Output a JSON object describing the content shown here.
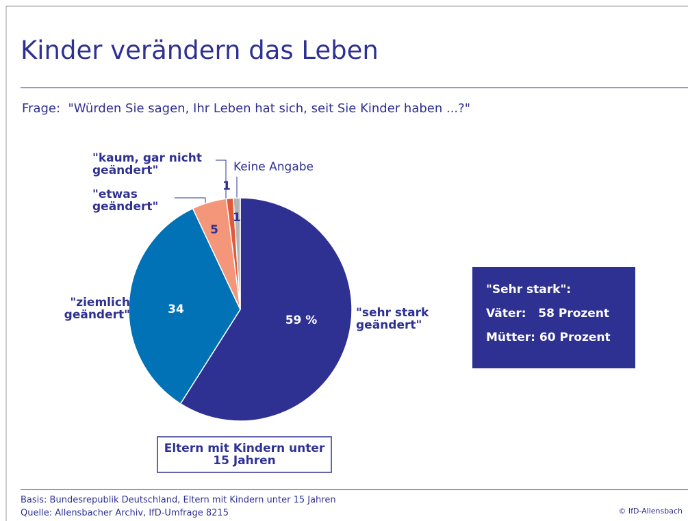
{
  "chart_data": {
    "type": "pie",
    "title": "Kinder verändern das Leben",
    "subtitle": "Frage:  \"Würden Sie sagen, Ihr Leben hat sich, seit Sie Kinder haben ...?\"",
    "categories": [
      "\"sehr stark geändert\"",
      "\"ziemlich geändert\"",
      "\"etwas geändert\"",
      "\"kaum, gar nicht geändert\"",
      "Keine Angabe"
    ],
    "values": [
      59,
      34,
      5,
      1,
      1
    ],
    "value_labels": [
      "59 %",
      "34",
      "5",
      "1",
      "1"
    ],
    "colors": [
      "#2e3192",
      "#0072b5",
      "#f4967a",
      "#e05a3a",
      "#b4b4b4"
    ],
    "group_label": "Eltern mit Kindern unter 15 Jahren",
    "annotations": [
      "\"Sehr stark\":",
      "Väter:   58 Prozent",
      "Mütter: 60 Prozent"
    ],
    "footnotes": [
      "Basis: Bundesrepublik Deutschland, Eltern mit Kindern unter 15 Jahren",
      "Quelle: Allensbacher Archiv, IfD-Umfrage 8215"
    ],
    "copyright": "© IfD-Allensbach"
  }
}
